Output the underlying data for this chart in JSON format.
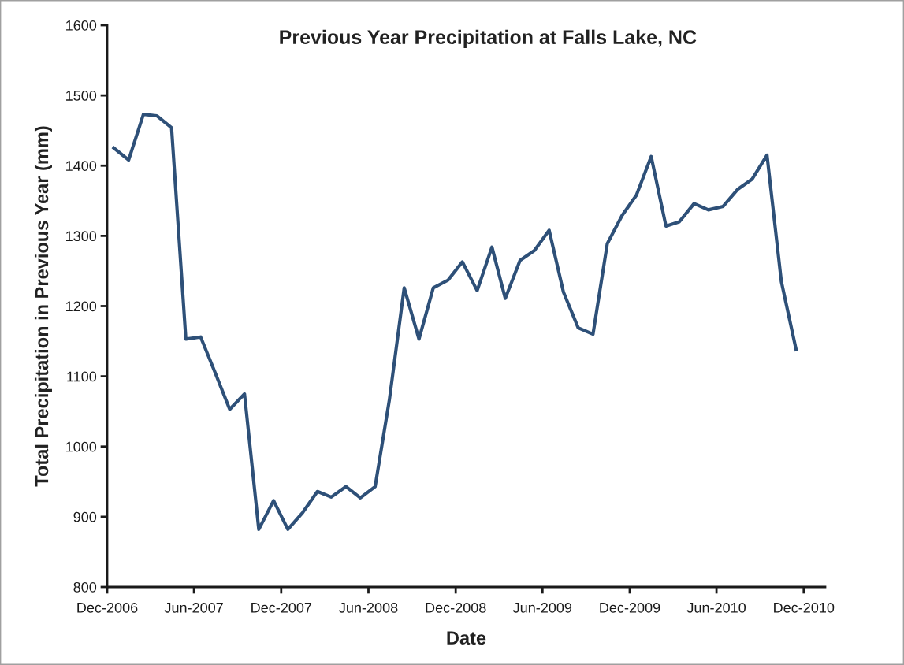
{
  "chart_data": {
    "type": "line",
    "title": "Previous Year Precipitation at Falls Lake, NC",
    "xlabel": "Date",
    "ylabel": "Total Precipitation in Previous Year (mm)",
    "x": [
      "2006-12-15",
      "2007-01-15",
      "2007-02-15",
      "2007-03-15",
      "2007-04-15",
      "2007-05-15",
      "2007-06-15",
      "2007-07-15",
      "2007-08-15",
      "2007-09-15",
      "2007-10-15",
      "2007-11-15",
      "2007-12-15",
      "2008-01-15",
      "2008-02-15",
      "2008-03-15",
      "2008-04-15",
      "2008-05-15",
      "2008-06-15",
      "2008-07-15",
      "2008-08-15",
      "2008-09-15",
      "2008-10-15",
      "2008-11-15",
      "2008-12-15",
      "2009-01-15",
      "2009-02-15",
      "2009-03-15",
      "2009-04-15",
      "2009-05-15",
      "2009-06-15",
      "2009-07-15",
      "2009-08-15",
      "2009-09-15",
      "2009-10-15",
      "2009-11-15",
      "2009-12-15",
      "2010-01-15",
      "2010-02-15",
      "2010-03-15",
      "2010-04-15",
      "2010-05-15",
      "2010-06-15",
      "2010-07-15",
      "2010-08-15",
      "2010-09-15",
      "2010-10-15",
      "2010-11-15"
    ],
    "series": [
      {
        "color": "#2e5078",
        "values": [
          1425,
          1408,
          1473,
          1471,
          1454,
          1153,
          1156,
          1106,
          1053,
          1075,
          882,
          923,
          882,
          906,
          936,
          928,
          943,
          927,
          943,
          1067,
          1226,
          1153,
          1226,
          1237,
          1263,
          1222,
          1284,
          1211,
          1265,
          1279,
          1308,
          1220,
          1169,
          1160,
          1289,
          1329,
          1358,
          1413,
          1314,
          1320,
          1346,
          1337,
          1342,
          1366,
          1381,
          1415,
          1235,
          1138
        ]
      }
    ],
    "xlim": [
      "2006-12-01",
      "2011-01-15"
    ],
    "xticks": [
      {
        "value": "2006-12-01",
        "label": "Dec-2006"
      },
      {
        "value": "2007-06-01",
        "label": "Jun-2007"
      },
      {
        "value": "2007-12-01",
        "label": "Dec-2007"
      },
      {
        "value": "2008-06-01",
        "label": "Jun-2008"
      },
      {
        "value": "2008-12-01",
        "label": "Dec-2008"
      },
      {
        "value": "2009-06-01",
        "label": "Jun-2009"
      },
      {
        "value": "2009-12-01",
        "label": "Dec-2009"
      },
      {
        "value": "2010-06-01",
        "label": "Jun-2010"
      },
      {
        "value": "2010-12-01",
        "label": "Dec-2010"
      }
    ],
    "ylim": [
      800,
      1600
    ],
    "yticks": [
      800,
      900,
      1000,
      1100,
      1200,
      1300,
      1400,
      1500,
      1600
    ],
    "grid": false,
    "legend": false,
    "marker": "none",
    "line_style": "solid"
  }
}
